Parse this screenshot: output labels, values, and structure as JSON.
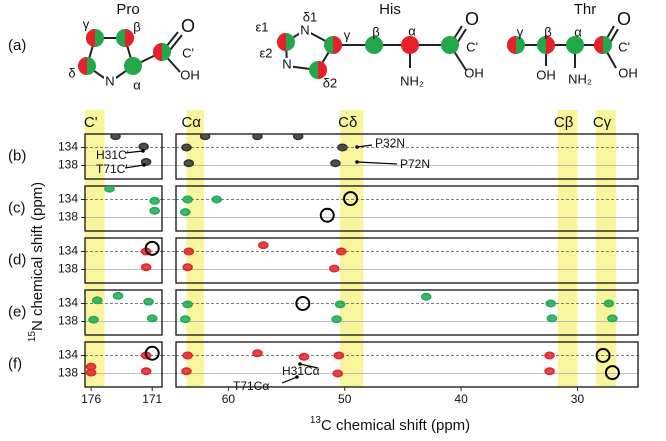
{
  "structures": {
    "panel_label": "(a)",
    "residues": [
      {
        "name": "Pro",
        "labels": [
          "γ",
          "β",
          "δ",
          "α",
          "N",
          "C'",
          "OH",
          "O"
        ]
      },
      {
        "name": "His",
        "labels": [
          "ε1",
          "δ1",
          "ε2",
          "δ2",
          "γ",
          "β",
          "α",
          "NH₂",
          "C'",
          "OH",
          "O",
          "N",
          "N"
        ]
      },
      {
        "name": "Thr",
        "labels": [
          "γ",
          "β",
          "α",
          "C'",
          "OH",
          "NH₂",
          "OH",
          "O"
        ]
      }
    ]
  },
  "spectra": {
    "x_axis_label": {
      "sup": "13",
      "text": "C chemical shift (ppm)"
    },
    "y_axis_label": {
      "sup": "15",
      "text": "N chemical shift (ppm)"
    },
    "left_xlim": [
      176.5,
      170.2
    ],
    "right_xlim": [
      64.5,
      24.8
    ],
    "left_xticks": [
      176,
      171
    ],
    "right_xticks": [
      60,
      50,
      40,
      30
    ],
    "ylim": [
      131,
      141
    ],
    "yticks": [
      134,
      138
    ],
    "grid_styles": [
      "dashed",
      "solid"
    ],
    "columns": [
      {
        "label": "C'",
        "panel": "left",
        "range": [
          176.5,
          174.9
        ]
      },
      {
        "label": "Cα",
        "panel": "right",
        "range": [
          63.6,
          62.1
        ]
      },
      {
        "label": "Cδ",
        "panel": "right",
        "range": [
          50.4,
          48.4
        ]
      },
      {
        "label": "Cβ",
        "panel": "right",
        "range": [
          31.7,
          30
        ]
      },
      {
        "label": "Cγ",
        "panel": "right",
        "range": [
          28.4,
          26.7
        ]
      }
    ],
    "panels": [
      {
        "label": "(b)",
        "color": "#333333",
        "left_peaks": [
          [
            171.7,
            133.8
          ],
          [
            171.5,
            137.2
          ],
          [
            174,
            131.5
          ]
        ],
        "right_peaks": [
          [
            63.6,
            134
          ],
          [
            63.4,
            137.5
          ],
          [
            57.5,
            131.5
          ],
          [
            54,
            131.5
          ],
          [
            50.2,
            134
          ],
          [
            50.8,
            137.5
          ],
          [
            62,
            131.5
          ]
        ],
        "left_circles": [],
        "right_circles": [],
        "annotations": [
          "P32N",
          "P72N",
          "H31C'",
          "T71C'"
        ]
      },
      {
        "label": "(c)",
        "color": "#1faa55",
        "left_peaks": [
          [
            170.8,
            134.3
          ],
          [
            170.8,
            136.5
          ],
          [
            174.5,
            131.6
          ]
        ],
        "right_peaks": [
          [
            63.5,
            134
          ],
          [
            63.7,
            136.8
          ],
          [
            61,
            134
          ]
        ],
        "left_circles": [],
        "right_circles": [
          [
            49.5,
            133.8
          ],
          [
            51.5,
            137.5
          ]
        ],
        "annotations": []
      },
      {
        "label": "(d)",
        "color": "#e0242c",
        "left_peaks": [
          [
            171.5,
            134
          ],
          [
            171.5,
            137.5
          ]
        ],
        "right_peaks": [
          [
            63.4,
            134
          ],
          [
            63.5,
            137.5
          ],
          [
            57,
            132.6
          ],
          [
            50.3,
            134
          ],
          [
            50.9,
            137.8
          ]
        ],
        "left_circles": [
          [
            171,
            133.3
          ]
        ],
        "right_circles": [],
        "annotations": []
      },
      {
        "label": "(e)",
        "color": "#1faa55",
        "left_peaks": [
          [
            175.5,
            133.3
          ],
          [
            175.8,
            137.6
          ],
          [
            173.8,
            132.3
          ],
          [
            171.3,
            133.6
          ],
          [
            171,
            137.3
          ]
        ],
        "right_peaks": [
          [
            63.5,
            134.2
          ],
          [
            63.7,
            137.5
          ],
          [
            50.4,
            134.2
          ],
          [
            50.7,
            137.5
          ],
          [
            32.3,
            134
          ],
          [
            32.2,
            137.3
          ],
          [
            27.3,
            134
          ],
          [
            27,
            137.3
          ],
          [
            43,
            132.5
          ]
        ],
        "left_circles": [],
        "right_circles": [
          [
            53.6,
            134
          ]
        ],
        "annotations": []
      },
      {
        "label": "(f)",
        "color": "#e0242c",
        "left_peaks": [
          [
            176,
            136.5
          ],
          [
            176,
            137.8
          ],
          [
            171.5,
            134
          ],
          [
            171.5,
            137.5
          ]
        ],
        "right_peaks": [
          [
            63.5,
            134
          ],
          [
            63.6,
            137.5
          ],
          [
            57.5,
            133.5
          ],
          [
            53.5,
            134.3
          ],
          [
            50.5,
            134
          ],
          [
            50.6,
            138
          ],
          [
            32.4,
            134
          ],
          [
            32.4,
            137.5
          ]
        ],
        "left_circles": [
          [
            171,
            133.5
          ]
        ],
        "right_circles": [
          [
            27.8,
            134
          ],
          [
            27,
            137.8
          ]
        ],
        "annotations": [
          "H31Cα",
          "T71Cα"
        ]
      }
    ]
  }
}
